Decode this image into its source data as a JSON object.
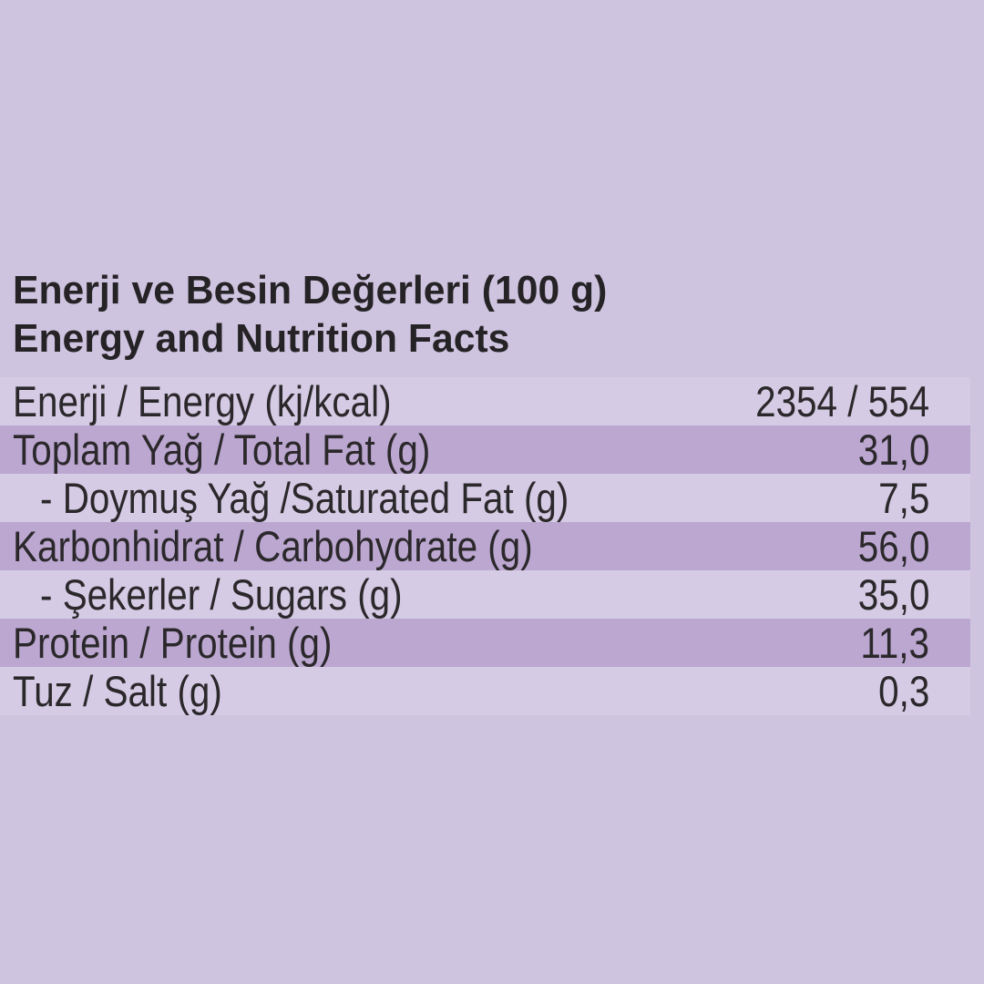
{
  "header": {
    "title_tr": "Enerji ve Besin Değerleri (100 g)",
    "title_en": "Energy and Nutrition Facts"
  },
  "table": {
    "rows": [
      {
        "label": "Enerji / Energy (kj/kcal)",
        "value": "2354 / 554",
        "shaded": false,
        "indent": false
      },
      {
        "label": "Toplam Yağ / Total Fat (g)",
        "value": "31,0",
        "shaded": true,
        "indent": false
      },
      {
        "label": "- Doymuş Yağ /Saturated Fat (g)",
        "value": "7,5",
        "shaded": false,
        "indent": true
      },
      {
        "label": "Karbonhidrat / Carbohydrate (g)",
        "value": "56,0",
        "shaded": true,
        "indent": false
      },
      {
        "label": "- Şekerler / Sugars (g)",
        "value": "35,0",
        "shaded": false,
        "indent": true
      },
      {
        "label": "Protein / Protein (g)",
        "value": "11,3",
        "shaded": true,
        "indent": false
      },
      {
        "label": "Tuz / Salt (g)",
        "value": "0,3",
        "shaded": false,
        "indent": false
      }
    ]
  },
  "colors": {
    "bg": "#cfc4e0",
    "stripe": "#bca7d1",
    "rowLight": "#d5cbe4",
    "text": "#2b282b",
    "title": "#262326"
  }
}
